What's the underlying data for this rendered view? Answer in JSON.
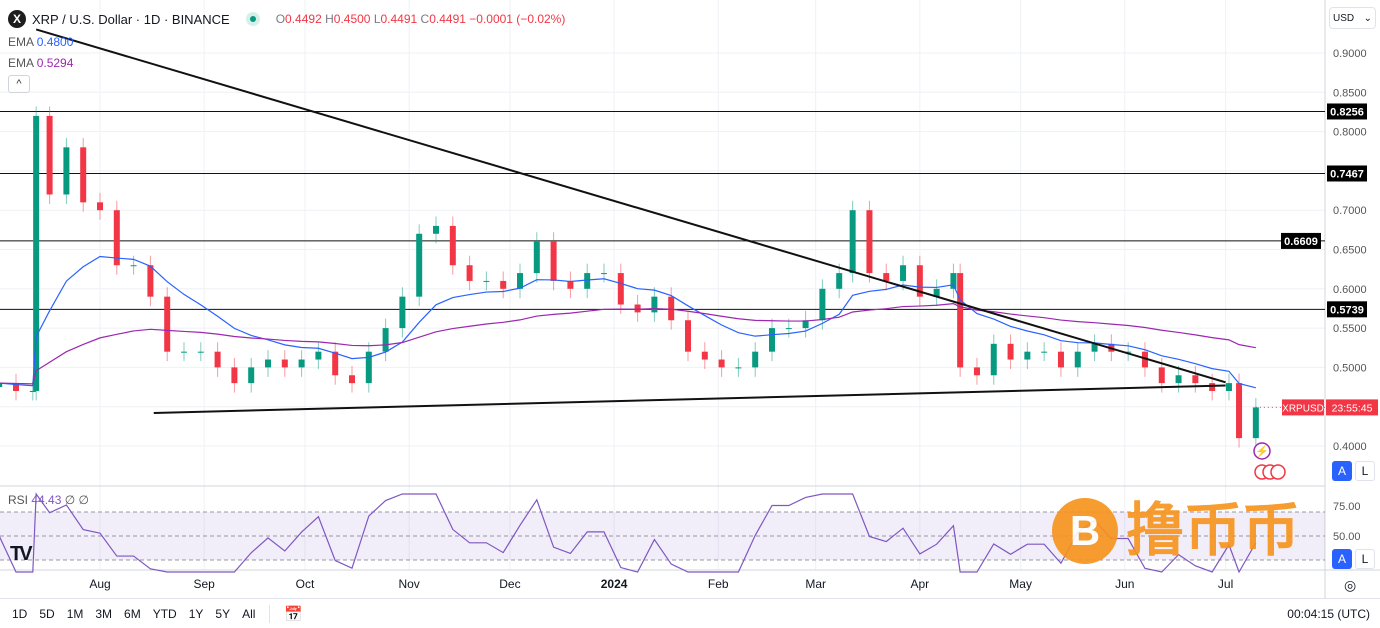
{
  "header": {
    "symbol_logo": "X",
    "title": "XRP / U.S. Dollar · 1D · BINANCE",
    "open_label": "O",
    "open": "0.4492",
    "high_label": "H",
    "high": "0.4500",
    "low_label": "L",
    "low": "0.4491",
    "close_label": "C",
    "close": "0.4491",
    "change": "−0.0001 (−0.02%)"
  },
  "indicators": [
    {
      "label": "EMA",
      "value": "0.4800",
      "color": "#2962ff"
    },
    {
      "label": "EMA",
      "value": "0.5294",
      "color": "#9c27b0"
    }
  ],
  "rsi": {
    "label": "RSI",
    "value": "44.43",
    "extra": "∅ ∅",
    "color": "#7e57c2"
  },
  "currency": "USD",
  "scale_buttons": {
    "auto": "A",
    "log": "L"
  },
  "symbol_tag": "XRPUSD",
  "countdown": "23:55:45",
  "colors": {
    "up": "#089981",
    "down": "#f23645",
    "ema_fast": "#2962ff",
    "ema_slow": "#9c27b0",
    "rsi": "#7e57c2"
  },
  "bottom": {
    "ranges": [
      "1D",
      "5D",
      "1M",
      "3M",
      "6M",
      "YTD",
      "1Y",
      "5Y",
      "All"
    ],
    "clock": "00:04:15 (UTC)"
  },
  "watermark": {
    "text": "撸币币",
    "logo": "₿"
  },
  "chart_data": {
    "type": "candlestick",
    "ylim": [
      0.37,
      0.94
    ],
    "y_ticks": [
      0.4,
      0.45,
      0.5,
      0.55,
      0.6,
      0.65,
      0.7,
      0.75,
      0.8,
      0.85,
      0.9
    ],
    "y_tick_labels": [
      "0.4000",
      "",
      "0.5000",
      "0.5500",
      "0.6000",
      "0.6500",
      "0.7000",
      "",
      "0.8000",
      "0.8500",
      "0.9000"
    ],
    "x_ticks": [
      {
        "date": "2023-08-01",
        "label": "Aug"
      },
      {
        "date": "2023-09-01",
        "label": "Sep"
      },
      {
        "date": "2023-10-01",
        "label": "Oct"
      },
      {
        "date": "2023-11-01",
        "label": "Nov"
      },
      {
        "date": "2023-12-01",
        "label": "Dec"
      },
      {
        "date": "2024-01-01",
        "label": "2024"
      },
      {
        "date": "2024-02-01",
        "label": "Feb"
      },
      {
        "date": "2024-03-01",
        "label": "Mar"
      },
      {
        "date": "2024-04-01",
        "label": "Apr"
      },
      {
        "date": "2024-05-01",
        "label": "May"
      },
      {
        "date": "2024-06-01",
        "label": "Jun"
      },
      {
        "date": "2024-07-01",
        "label": "Jul"
      }
    ],
    "horizontal_levels": [
      "0.8256",
      "0.7467",
      "0.6609",
      "0.5739"
    ],
    "trendlines": [
      {
        "from": [
          "2023-07-13",
          0.93
        ],
        "to": [
          "2024-07-01",
          0.481
        ]
      },
      {
        "from": [
          "2023-08-17",
          0.442
        ],
        "to": [
          "2024-07-01",
          0.477
        ]
      }
    ],
    "rsi_levels": [
      70,
      50,
      30
    ],
    "rsi_ticks": [
      "75.00",
      "50.00"
    ],
    "candles": [
      [
        "2023-07-02",
        0.48
      ],
      [
        "2023-07-07",
        0.47
      ],
      [
        "2023-07-12",
        0.47
      ],
      [
        "2023-07-13",
        0.82
      ],
      [
        "2023-07-17",
        0.72
      ],
      [
        "2023-07-22",
        0.78
      ],
      [
        "2023-07-27",
        0.71
      ],
      [
        "2023-08-01",
        0.7
      ],
      [
        "2023-08-06",
        0.63
      ],
      [
        "2023-08-11",
        0.63
      ],
      [
        "2023-08-16",
        0.59
      ],
      [
        "2023-08-21",
        0.52
      ],
      [
        "2023-08-26",
        0.52
      ],
      [
        "2023-08-31",
        0.52
      ],
      [
        "2023-09-05",
        0.5
      ],
      [
        "2023-09-10",
        0.48
      ],
      [
        "2023-09-15",
        0.5
      ],
      [
        "2023-09-20",
        0.51
      ],
      [
        "2023-09-25",
        0.5
      ],
      [
        "2023-09-30",
        0.51
      ],
      [
        "2023-10-05",
        0.52
      ],
      [
        "2023-10-10",
        0.49
      ],
      [
        "2023-10-15",
        0.48
      ],
      [
        "2023-10-20",
        0.52
      ],
      [
        "2023-10-25",
        0.55
      ],
      [
        "2023-10-30",
        0.59
      ],
      [
        "2023-11-04",
        0.67
      ],
      [
        "2023-11-09",
        0.68
      ],
      [
        "2023-11-14",
        0.63
      ],
      [
        "2023-11-19",
        0.61
      ],
      [
        "2023-11-24",
        0.61
      ],
      [
        "2023-11-29",
        0.6
      ],
      [
        "2023-12-04",
        0.62
      ],
      [
        "2023-12-09",
        0.66
      ],
      [
        "2023-12-14",
        0.61
      ],
      [
        "2023-12-19",
        0.6
      ],
      [
        "2023-12-24",
        0.62
      ],
      [
        "2023-12-29",
        0.62
      ],
      [
        "2024-01-03",
        0.58
      ],
      [
        "2024-01-08",
        0.57
      ],
      [
        "2024-01-13",
        0.59
      ],
      [
        "2024-01-18",
        0.56
      ],
      [
        "2024-01-23",
        0.52
      ],
      [
        "2024-01-28",
        0.51
      ],
      [
        "2024-02-02",
        0.5
      ],
      [
        "2024-02-07",
        0.5
      ],
      [
        "2024-02-12",
        0.52
      ],
      [
        "2024-02-17",
        0.55
      ],
      [
        "2024-02-22",
        0.55
      ],
      [
        "2024-02-27",
        0.56
      ],
      [
        "2024-03-03",
        0.6
      ],
      [
        "2024-03-08",
        0.62
      ],
      [
        "2024-03-12",
        0.7
      ],
      [
        "2024-03-17",
        0.62
      ],
      [
        "2024-03-22",
        0.61
      ],
      [
        "2024-03-27",
        0.63
      ],
      [
        "2024-04-01",
        0.59
      ],
      [
        "2024-04-06",
        0.6
      ],
      [
        "2024-04-11",
        0.62
      ],
      [
        "2024-04-13",
        0.5
      ],
      [
        "2024-04-18",
        0.49
      ],
      [
        "2024-04-23",
        0.53
      ],
      [
        "2024-04-28",
        0.51
      ],
      [
        "2024-05-03",
        0.52
      ],
      [
        "2024-05-08",
        0.52
      ],
      [
        "2024-05-13",
        0.5
      ],
      [
        "2024-05-18",
        0.52
      ],
      [
        "2024-05-23",
        0.53
      ],
      [
        "2024-05-28",
        0.52
      ],
      [
        "2024-06-02",
        0.52
      ],
      [
        "2024-06-07",
        0.5
      ],
      [
        "2024-06-12",
        0.48
      ],
      [
        "2024-06-17",
        0.49
      ],
      [
        "2024-06-22",
        0.48
      ],
      [
        "2024-06-27",
        0.47
      ],
      [
        "2024-07-02",
        0.48
      ],
      [
        "2024-07-05",
        0.41
      ],
      [
        "2024-07-10",
        0.4491
      ]
    ]
  }
}
